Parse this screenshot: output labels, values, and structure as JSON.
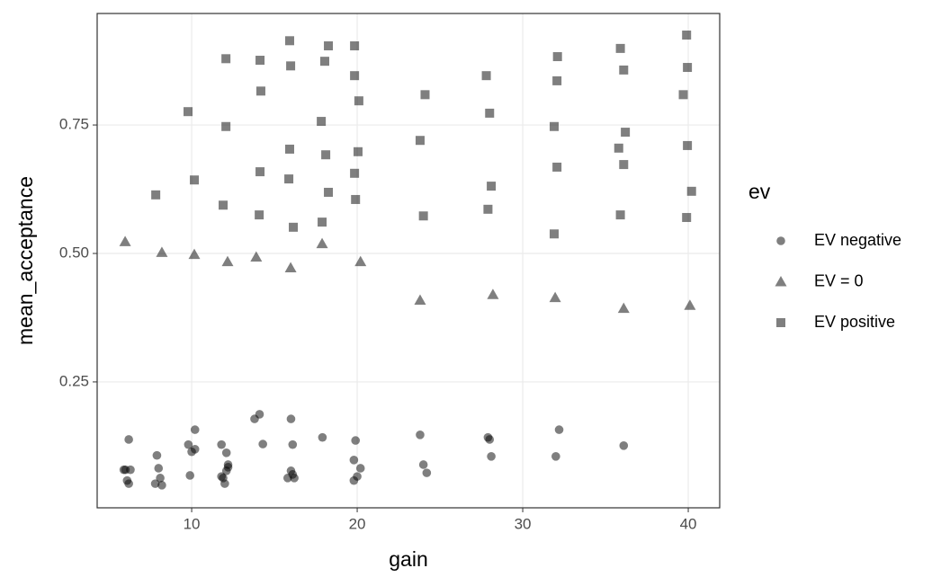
{
  "chart_data": {
    "type": "scatter",
    "x_label": "gain",
    "y_label": "mean_acceptance",
    "legend_title": "ev",
    "xlim": [
      4.29,
      41.9
    ],
    "ylim": [
      0.005,
      0.967
    ],
    "xticks": [
      10,
      20,
      30,
      40
    ],
    "yticks": [
      0.25,
      {
        "value": 0.5,
        "label": "0.50"
      },
      0.75
    ],
    "grid": true,
    "legend": "right",
    "opacity": 0.5,
    "series": [
      {
        "name": "EV negative",
        "color": "#000000",
        "shape": "circle",
        "x": [
          6.0,
          6.1,
          6.2,
          6.3,
          5.9,
          6.2,
          7.9,
          8.0,
          8.1,
          7.8,
          8.2,
          9.8,
          9.9,
          10.0,
          10.2,
          10.2,
          11.8,
          12.1,
          12.2,
          12.1,
          11.9,
          12.0,
          11.8,
          12.2,
          13.8,
          14.1,
          14.3,
          15.8,
          16.0,
          16.1,
          16.0,
          16.2,
          16.1,
          17.9,
          19.9,
          19.8,
          20.2,
          20.0,
          19.8,
          23.8,
          24.0,
          24.2,
          27.9,
          28.0,
          28.1,
          32.0,
          32.2,
          36.1
        ],
        "values": [
          0.079,
          0.058,
          0.052,
          0.079,
          0.079,
          0.138,
          0.107,
          0.082,
          0.063,
          0.052,
          0.049,
          0.128,
          0.068,
          0.114,
          0.157,
          0.119,
          0.128,
          0.112,
          0.089,
          0.077,
          0.063,
          0.052,
          0.066,
          0.084,
          0.178,
          0.187,
          0.129,
          0.063,
          0.178,
          0.128,
          0.077,
          0.063,
          0.07,
          0.142,
          0.136,
          0.098,
          0.082,
          0.066,
          0.058,
          0.147,
          0.089,
          0.073,
          0.142,
          0.138,
          0.105,
          0.105,
          0.157,
          0.126
        ]
      },
      {
        "name": "EV = 0",
        "color": "#000000",
        "shape": "triangle",
        "x": [
          5.98,
          8.2,
          10.16,
          12.17,
          13.9,
          15.98,
          17.88,
          20.2,
          23.8,
          28.2,
          31.96,
          36.1,
          40.1
        ],
        "values": [
          0.523,
          0.502,
          0.498,
          0.484,
          0.493,
          0.472,
          0.519,
          0.484,
          0.409,
          0.42,
          0.414,
          0.393,
          0.399
        ]
      },
      {
        "name": "EV positive",
        "color": "#000000",
        "shape": "square",
        "x": [
          7.83,
          9.78,
          10.16,
          11.9,
          12.07,
          12.07,
          14.13,
          14.18,
          14.13,
          14.08,
          15.92,
          15.98,
          15.92,
          15.87,
          16.14,
          18.26,
          18.04,
          17.83,
          18.1,
          18.26,
          17.88,
          19.84,
          19.84,
          20.1,
          20.05,
          19.84,
          19.9,
          24.1,
          23.8,
          24.0,
          27.8,
          28.0,
          28.1,
          27.9,
          32.1,
          32.07,
          31.9,
          32.07,
          31.9,
          35.9,
          36.1,
          36.2,
          36.1,
          35.8,
          35.9,
          39.9,
          39.95,
          39.7,
          39.95,
          40.2,
          39.9
        ],
        "values": [
          0.614,
          0.776,
          0.643,
          0.594,
          0.879,
          0.747,
          0.876,
          0.816,
          0.659,
          0.575,
          0.914,
          0.865,
          0.703,
          0.645,
          0.551,
          0.904,
          0.874,
          0.757,
          0.692,
          0.619,
          0.561,
          0.904,
          0.846,
          0.797,
          0.698,
          0.656,
          0.605,
          0.809,
          0.72,
          0.573,
          0.846,
          0.773,
          0.631,
          0.586,
          0.883,
          0.836,
          0.747,
          0.668,
          0.538,
          0.899,
          0.857,
          0.736,
          0.673,
          0.705,
          0.575,
          0.925,
          0.862,
          0.809,
          0.71,
          0.621,
          0.57
        ]
      }
    ]
  }
}
